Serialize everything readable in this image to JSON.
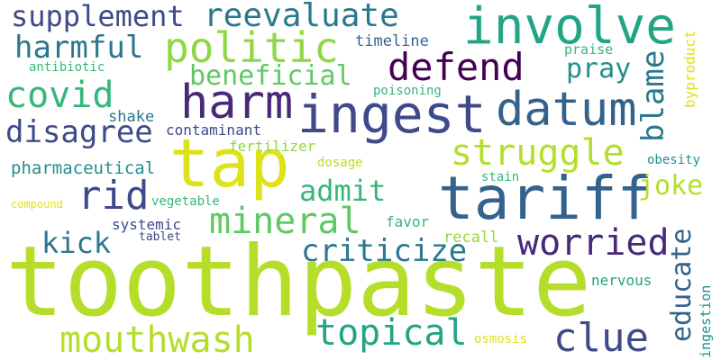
{
  "palette": {
    "yellow": "#dde318",
    "lime": "#b5de2b",
    "light_green": "#8fd744",
    "green": "#5ec962",
    "teal_green": "#35b779",
    "teal": "#21a585",
    "cyan": "#20908d",
    "blue_teal": "#2a788e",
    "blue": "#33638d",
    "indigo": "#3e4a89",
    "dark_purple": "#482878",
    "deep_purple": "#440154"
  },
  "words": [
    {
      "id": "toothpaste",
      "text": "toothpaste",
      "color": "#b5de2b"
    },
    {
      "id": "tap",
      "text": "tap",
      "color": "#dde318"
    },
    {
      "id": "tariff",
      "text": "tariff",
      "color": "#33638d"
    },
    {
      "id": "ingest",
      "text": "ingest",
      "color": "#3e4a89"
    },
    {
      "id": "involve",
      "text": "involve",
      "color": "#21a585"
    },
    {
      "id": "harm",
      "text": "harm",
      "color": "#482878"
    },
    {
      "id": "datum",
      "text": "datum",
      "color": "#33638d"
    },
    {
      "id": "politic",
      "text": "politic",
      "color": "#8fd744"
    },
    {
      "id": "defend",
      "text": "defend",
      "color": "#440154"
    },
    {
      "id": "mouthwash",
      "text": "mouthwash",
      "color": "#b5de2b"
    },
    {
      "id": "struggle",
      "text": "struggle",
      "color": "#b5de2b"
    },
    {
      "id": "rid",
      "text": "rid",
      "color": "#3e4a89"
    },
    {
      "id": "worried",
      "text": "worried",
      "color": "#482878"
    },
    {
      "id": "clue",
      "text": "clue",
      "color": "#3e4a89"
    },
    {
      "id": "topical",
      "text": "topical",
      "color": "#21a585"
    },
    {
      "id": "mineral",
      "text": "mineral",
      "color": "#5ec962"
    },
    {
      "id": "harmful",
      "text": "harmful",
      "color": "#2a788e"
    },
    {
      "id": "reevaluate",
      "text": "reevaluate",
      "color": "#2a788e"
    },
    {
      "id": "supplement",
      "text": "supplement",
      "color": "#3e4a89"
    },
    {
      "id": "covid",
      "text": "covid",
      "color": "#35b779"
    },
    {
      "id": "disagree",
      "text": "disagree",
      "color": "#3e4a89"
    },
    {
      "id": "beneficial",
      "text": "beneficial",
      "color": "#5ec962"
    },
    {
      "id": "criticize",
      "text": "criticize",
      "color": "#2a788e"
    },
    {
      "id": "admit",
      "text": "admit",
      "color": "#35b779"
    },
    {
      "id": "kick",
      "text": "kick",
      "color": "#2a788e"
    },
    {
      "id": "pray",
      "text": "pray",
      "color": "#20908d"
    },
    {
      "id": "joke",
      "text": "joke",
      "color": "#b5de2b"
    },
    {
      "id": "blame",
      "text": "blame",
      "color": "#2a788e"
    },
    {
      "id": "educate",
      "text": "educate",
      "color": "#33638d"
    },
    {
      "id": "timeline",
      "text": "timeline",
      "color": "#33638d"
    },
    {
      "id": "shake",
      "text": "shake",
      "color": "#2a788e"
    },
    {
      "id": "contaminant",
      "text": "contaminant",
      "color": "#3e4a89"
    },
    {
      "id": "pharmaceutical",
      "text": "pharmaceutical",
      "color": "#20908d"
    },
    {
      "id": "fertilizer",
      "text": "fertilizer",
      "color": "#8fd744"
    },
    {
      "id": "dosage",
      "text": "dosage",
      "color": "#b5de2b"
    },
    {
      "id": "stain",
      "text": "stain",
      "color": "#35b779"
    },
    {
      "id": "recall",
      "text": "recall",
      "color": "#8fd744"
    },
    {
      "id": "favor",
      "text": "favor",
      "color": "#35b779"
    },
    {
      "id": "systemic",
      "text": "systemic",
      "color": "#3e4a89"
    },
    {
      "id": "tablet",
      "text": "tablet",
      "color": "#3e4a89"
    },
    {
      "id": "vegetable",
      "text": "vegetable",
      "color": "#35b779"
    },
    {
      "id": "compound",
      "text": "compound",
      "color": "#dde318"
    },
    {
      "id": "antibiotic",
      "text": "antibiotic",
      "color": "#35b779"
    },
    {
      "id": "poisoning",
      "text": "poisoning",
      "color": "#35b779"
    },
    {
      "id": "praise",
      "text": "praise",
      "color": "#35b779"
    },
    {
      "id": "byproduct",
      "text": "byproduct",
      "color": "#dde318"
    },
    {
      "id": "obesity",
      "text": "obesity",
      "color": "#20908d"
    },
    {
      "id": "nervous",
      "text": "nervous",
      "color": "#21a585"
    },
    {
      "id": "ingestion",
      "text": "ingestion",
      "color": "#20908d"
    },
    {
      "id": "osmosis",
      "text": "osmosis",
      "color": "#dde318"
    }
  ]
}
